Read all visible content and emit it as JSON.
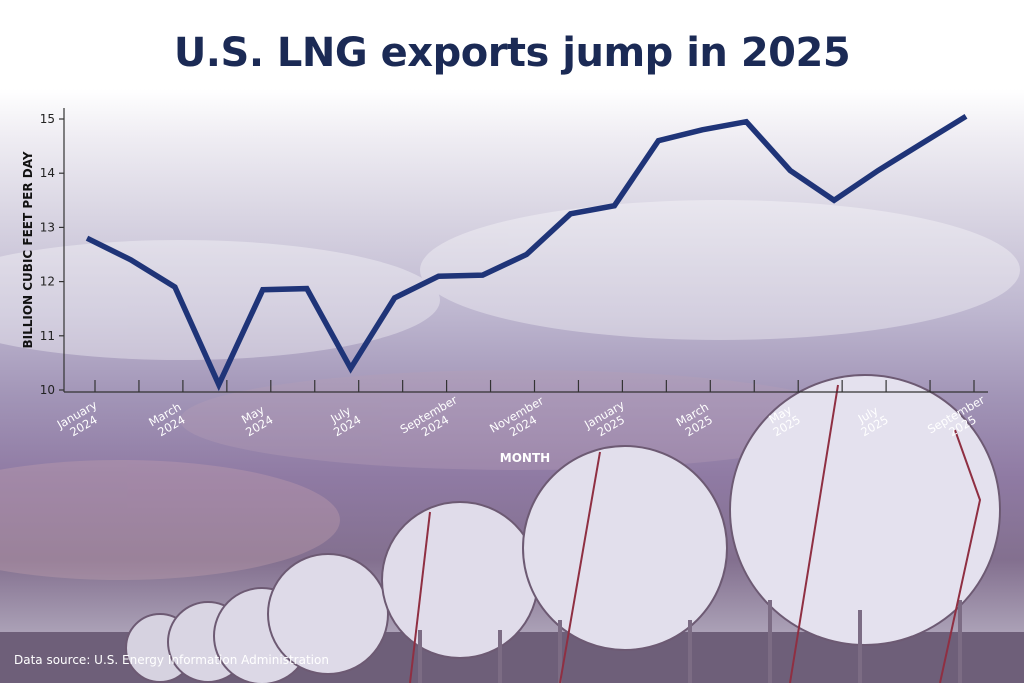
{
  "title": "U.S. LNG exports jump in 2025",
  "source": "Data source: U.S. Energy Information Administration",
  "colors": {
    "line": "#1f3478",
    "title": "#1b2a55",
    "axis": "#333333"
  },
  "chart_data": {
    "type": "line",
    "title": "U.S. LNG exports jump in 2025",
    "xlabel": "MONTH",
    "ylabel": "BILLION CUBIC FEET PER DAY",
    "ylim": [
      10,
      15
    ],
    "yticks": [
      "10",
      "11",
      "12",
      "13",
      "14",
      "15"
    ],
    "grid": false,
    "x": [
      "2024-01",
      "2024-02",
      "2024-03",
      "2024-04",
      "2024-05",
      "2024-06",
      "2024-07",
      "2024-08",
      "2024-09",
      "2024-10",
      "2024-11",
      "2024-12",
      "2025-01",
      "2025-02",
      "2025-03",
      "2025-04",
      "2025-05",
      "2025-06",
      "2025-07",
      "2025-08",
      "2025-09"
    ],
    "xtick_labels": [
      [
        "January",
        "2024"
      ],
      [
        "March",
        "2024"
      ],
      [
        "May",
        "2024"
      ],
      [
        "July",
        "2024"
      ],
      [
        "September",
        "2024"
      ],
      [
        "November",
        "2024"
      ],
      [
        "January",
        "2025"
      ],
      [
        "March",
        "2025"
      ],
      [
        "May",
        "2025"
      ],
      [
        "July",
        "2025"
      ],
      [
        "September",
        "2025"
      ]
    ],
    "series": [
      {
        "values": [
          12.8,
          12.4,
          11.9,
          10.1,
          11.85,
          11.87,
          10.4,
          11.7,
          12.1,
          12.12,
          12.5,
          13.25,
          13.4,
          14.6,
          14.8,
          14.95,
          14.05,
          13.5,
          14.05,
          14.55,
          15.05
        ]
      }
    ]
  }
}
